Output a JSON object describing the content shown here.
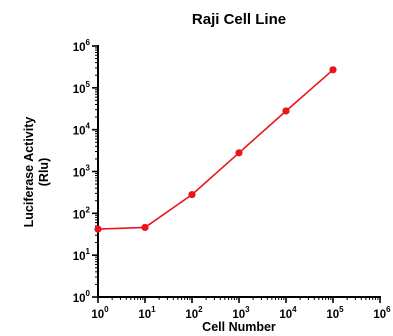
{
  "chart_data": {
    "type": "line",
    "title": "Raji Cell Line",
    "xlabel": "Cell Number",
    "ylabel": "Luciferase Activity (Rlu)",
    "ylabel_lines": [
      "Luciferase Activity",
      "(Rlu)"
    ],
    "x_scale": "log",
    "y_scale": "log",
    "xlim": [
      1,
      1000000
    ],
    "ylim": [
      1,
      1000000
    ],
    "x_ticks": [
      {
        "base": "10",
        "exp": "0"
      },
      {
        "base": "10",
        "exp": "1"
      },
      {
        "base": "10",
        "exp": "2"
      },
      {
        "base": "10",
        "exp": "3"
      },
      {
        "base": "10",
        "exp": "4"
      },
      {
        "base": "10",
        "exp": "5"
      },
      {
        "base": "10",
        "exp": "6"
      }
    ],
    "y_ticks": [
      {
        "base": "10",
        "exp": "0"
      },
      {
        "base": "10",
        "exp": "1"
      },
      {
        "base": "10",
        "exp": "2"
      },
      {
        "base": "10",
        "exp": "3"
      },
      {
        "base": "10",
        "exp": "4"
      },
      {
        "base": "10",
        "exp": "5"
      },
      {
        "base": "10",
        "exp": "6"
      }
    ],
    "grid": false,
    "legend": "none",
    "color": "#e8161b",
    "series": [
      {
        "x": [
          1,
          10,
          100,
          1000,
          10000,
          100000
        ],
        "y": [
          42,
          46,
          280,
          2800,
          28000,
          270000
        ]
      }
    ]
  }
}
